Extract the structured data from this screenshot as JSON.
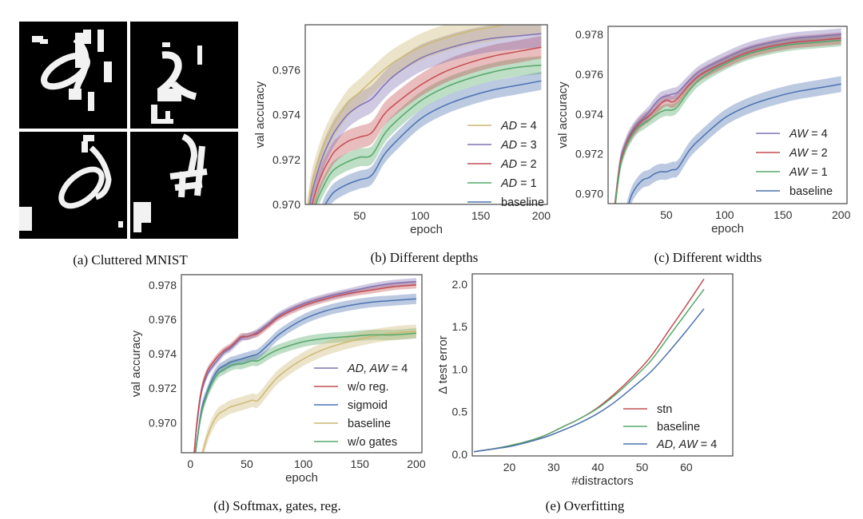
{
  "figure": {
    "panels": [
      {
        "id": "a",
        "caption": "(a) Cluttered MNIST"
      },
      {
        "id": "b",
        "caption": "(b) Different depths"
      },
      {
        "id": "c",
        "caption": "(c) Different widths"
      },
      {
        "id": "d",
        "caption": "(d) Softmax, gates, reg."
      },
      {
        "id": "e",
        "caption": "(e) Overfitting"
      }
    ],
    "mnist_samples": 4
  },
  "colors": {
    "yellow": "#ccb974",
    "purple": "#8172b2",
    "red": "#c44e52",
    "green": "#55a868",
    "blue": "#4c72b0",
    "tan": "#ccb974"
  },
  "chart_data": [
    {
      "id": "b",
      "type": "line",
      "title": "",
      "xlabel": "epoch",
      "ylabel": "val accuracy",
      "xlim": [
        5,
        205
      ],
      "ylim": [
        0.97,
        0.978
      ],
      "xticks": [
        50,
        100,
        150,
        200
      ],
      "yticks": [
        0.97,
        0.972,
        0.974,
        0.976
      ],
      "ytick_labels": [
        "0.970",
        "0.972",
        "0.974",
        "0.976"
      ],
      "legend_position": "lower-right",
      "bands": true,
      "x": [
        5,
        10,
        15,
        20,
        25,
        30,
        40,
        50,
        60,
        70,
        80,
        100,
        120,
        140,
        160,
        180,
        200
      ],
      "series": [
        {
          "name": "AD = 4",
          "color": "#ccb974",
          "band": 0.0006,
          "values": [
            0.969,
            0.9708,
            0.9718,
            0.9726,
            0.9732,
            0.9737,
            0.9745,
            0.975,
            0.9755,
            0.976,
            0.9764,
            0.977,
            0.9774,
            0.9777,
            0.9779,
            0.9781,
            0.9782
          ]
        },
        {
          "name": "AD = 3",
          "color": "#8172b2",
          "band": 0.0006,
          "values": [
            0.9686,
            0.9704,
            0.9714,
            0.9722,
            0.9728,
            0.9733,
            0.974,
            0.9744,
            0.9747,
            0.9753,
            0.9758,
            0.9765,
            0.9769,
            0.9772,
            0.9774,
            0.9775,
            0.9776
          ]
        },
        {
          "name": "AD = 2",
          "color": "#c44e52",
          "band": 0.0005,
          "values": [
            0.968,
            0.9698,
            0.9708,
            0.9715,
            0.972,
            0.9724,
            0.9728,
            0.973,
            0.9732,
            0.974,
            0.9745,
            0.9753,
            0.9759,
            0.9763,
            0.9766,
            0.9768,
            0.977
          ]
        },
        {
          "name": "AD = 1",
          "color": "#55a868",
          "band": 0.0004,
          "values": [
            0.9675,
            0.9692,
            0.9702,
            0.9708,
            0.9713,
            0.9716,
            0.9719,
            0.9721,
            0.9722,
            0.9731,
            0.9737,
            0.9746,
            0.9752,
            0.9756,
            0.9759,
            0.9761,
            0.9762
          ]
        },
        {
          "name": "baseline",
          "color": "#4c72b0",
          "band": 0.0004,
          "values": [
            0.966,
            0.9675,
            0.9688,
            0.9698,
            0.9703,
            0.9706,
            0.9709,
            0.9711,
            0.9713,
            0.9722,
            0.9728,
            0.9738,
            0.9744,
            0.9748,
            0.9751,
            0.9753,
            0.9755
          ]
        }
      ]
    },
    {
      "id": "c",
      "type": "line",
      "title": "",
      "xlabel": "epoch",
      "ylabel": "val accuracy",
      "xlim": [
        0,
        205
      ],
      "ylim": [
        0.9695,
        0.9784
      ],
      "xticks": [
        50,
        100,
        150,
        200
      ],
      "yticks": [
        0.97,
        0.972,
        0.974,
        0.976,
        0.978
      ],
      "ytick_labels": [
        "0.970",
        "0.972",
        "0.974",
        "0.976",
        "0.978"
      ],
      "legend_position": "lower-right",
      "bands": true,
      "x": [
        5,
        10,
        15,
        20,
        25,
        30,
        35,
        40,
        45,
        50,
        55,
        60,
        70,
        80,
        100,
        120,
        140,
        160,
        180,
        200
      ],
      "series": [
        {
          "name": "AW = 4",
          "color": "#8172b2",
          "band": 0.0003,
          "values": [
            0.969,
            0.9715,
            0.9725,
            0.9731,
            0.9735,
            0.9738,
            0.9741,
            0.9745,
            0.9748,
            0.9749,
            0.975,
            0.9751,
            0.9757,
            0.9762,
            0.9768,
            0.9773,
            0.9776,
            0.9778,
            0.9779,
            0.978
          ]
        },
        {
          "name": "AW = 2",
          "color": "#c44e52",
          "band": 0.0003,
          "values": [
            0.969,
            0.9714,
            0.9724,
            0.973,
            0.9734,
            0.9737,
            0.9739,
            0.9742,
            0.9745,
            0.9747,
            0.9746,
            0.9748,
            0.9755,
            0.976,
            0.9766,
            0.9771,
            0.9774,
            0.9776,
            0.9777,
            0.9778
          ]
        },
        {
          "name": "AW = 1",
          "color": "#55a868",
          "band": 0.0003,
          "values": [
            0.9688,
            0.9712,
            0.9723,
            0.9729,
            0.9733,
            0.9735,
            0.9737,
            0.9739,
            0.9741,
            0.9742,
            0.9742,
            0.9744,
            0.9752,
            0.9758,
            0.9765,
            0.977,
            0.9773,
            0.9775,
            0.9776,
            0.9777
          ]
        },
        {
          "name": "baseline",
          "color": "#4c72b0",
          "band": 0.0004,
          "values": [
            0.966,
            0.9675,
            0.9689,
            0.9699,
            0.9704,
            0.9707,
            0.9708,
            0.971,
            0.9711,
            0.9711,
            0.9712,
            0.9713,
            0.9722,
            0.9728,
            0.9738,
            0.9744,
            0.9748,
            0.9751,
            0.9753,
            0.9755
          ]
        }
      ]
    },
    {
      "id": "d",
      "type": "line",
      "title": "",
      "xlabel": "epoch",
      "ylabel": "val accuracy",
      "xlim": [
        -8,
        205
      ],
      "ylim": [
        0.96825,
        0.9786
      ],
      "xticks": [
        0,
        50,
        100,
        150,
        200
      ],
      "yticks": [
        0.97,
        0.972,
        0.974,
        0.976,
        0.978
      ],
      "ytick_labels": [
        "0.970",
        "0.972",
        "0.974",
        "0.976",
        "0.978"
      ],
      "legend_position": "lower-right",
      "bands": true,
      "x": [
        3,
        6,
        10,
        15,
        20,
        25,
        30,
        35,
        40,
        45,
        50,
        55,
        60,
        70,
        80,
        100,
        120,
        140,
        160,
        180,
        200
      ],
      "series": [
        {
          "name": "AD, AW = 4",
          "color": "#8172b2",
          "band": 0.0002,
          "values": [
            0.968,
            0.97,
            0.9718,
            0.9728,
            0.9733,
            0.9737,
            0.9741,
            0.9743,
            0.9746,
            0.9749,
            0.975,
            0.9751,
            0.9753,
            0.9758,
            0.9763,
            0.9769,
            0.9773,
            0.9776,
            0.9779,
            0.9781,
            0.9782
          ]
        },
        {
          "name": "w/o reg.",
          "color": "#c44e52",
          "band": 0.0002,
          "values": [
            0.968,
            0.9702,
            0.972,
            0.973,
            0.9735,
            0.9739,
            0.9742,
            0.9744,
            0.9747,
            0.975,
            0.975,
            0.9751,
            0.9752,
            0.9757,
            0.9762,
            0.9768,
            0.9772,
            0.9775,
            0.9777,
            0.9779,
            0.978
          ]
        },
        {
          "name": "sigmoid",
          "color": "#4c72b0",
          "band": 0.0003,
          "values": [
            0.9675,
            0.969,
            0.9708,
            0.9718,
            0.9726,
            0.9731,
            0.9733,
            0.9735,
            0.9736,
            0.9737,
            0.9738,
            0.9739,
            0.974,
            0.9746,
            0.9752,
            0.976,
            0.9765,
            0.9768,
            0.977,
            0.9771,
            0.9772
          ]
        },
        {
          "name": "baseline",
          "color": "#ccb974",
          "band": 0.0004,
          "values": [
            0.966,
            0.9665,
            0.968,
            0.9692,
            0.97,
            0.9705,
            0.9707,
            0.9709,
            0.971,
            0.9711,
            0.9712,
            0.9713,
            0.9713,
            0.9721,
            0.9728,
            0.9737,
            0.9743,
            0.9747,
            0.975,
            0.9752,
            0.9753
          ]
        },
        {
          "name": "w/o gates",
          "color": "#55a868",
          "band": 0.0003,
          "values": [
            0.9675,
            0.969,
            0.9706,
            0.9717,
            0.9724,
            0.9729,
            0.9731,
            0.9733,
            0.9734,
            0.9734,
            0.9735,
            0.9736,
            0.9736,
            0.974,
            0.9743,
            0.9747,
            0.9749,
            0.975,
            0.9751,
            0.9751,
            0.9752
          ]
        }
      ]
    },
    {
      "id": "e",
      "type": "line",
      "title": "",
      "xlabel": "#distractors",
      "ylabel": "Δ test error",
      "xlim": [
        11.6,
        70.5
      ],
      "ylim": [
        -0.02,
        2.12
      ],
      "xticks": [
        20,
        30,
        40,
        50,
        60
      ],
      "yticks": [
        0.0,
        0.5,
        1.0,
        1.5,
        2.0
      ],
      "ytick_labels": [
        "0.0",
        "0.5",
        "1.0",
        "1.5",
        "2.0"
      ],
      "legend_position": "lower-right",
      "bands": false,
      "x": [
        12,
        16,
        20,
        24,
        28,
        32,
        36,
        40,
        44,
        48,
        52,
        56,
        60,
        64
      ],
      "series": [
        {
          "name": "stn",
          "color": "#c44e52",
          "values": [
            0.03,
            0.06,
            0.1,
            0.15,
            0.22,
            0.32,
            0.42,
            0.55,
            0.72,
            0.92,
            1.15,
            1.45,
            1.75,
            2.06
          ]
        },
        {
          "name": "baseline",
          "color": "#55a868",
          "values": [
            0.03,
            0.06,
            0.1,
            0.15,
            0.22,
            0.32,
            0.42,
            0.54,
            0.7,
            0.89,
            1.1,
            1.38,
            1.66,
            1.94
          ]
        },
        {
          "name": "AD, AW = 4",
          "color": "#4c72b0",
          "values": [
            0.03,
            0.06,
            0.09,
            0.14,
            0.2,
            0.28,
            0.37,
            0.48,
            0.62,
            0.79,
            0.97,
            1.2,
            1.45,
            1.71
          ]
        }
      ]
    }
  ]
}
